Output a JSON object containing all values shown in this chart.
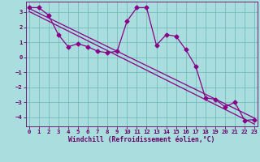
{
  "xlabel": "Windchill (Refroidissement éolien,°C)",
  "bg_color": "#aadddd",
  "line_color": "#880088",
  "grid_color": "#77bbbb",
  "axis_color": "#660066",
  "xlim": [
    -0.3,
    23.3
  ],
  "ylim": [
    -4.6,
    3.7
  ],
  "yticks": [
    -4,
    -3,
    -2,
    -1,
    0,
    1,
    2,
    3
  ],
  "xticks": [
    0,
    1,
    2,
    3,
    4,
    5,
    6,
    7,
    8,
    9,
    10,
    11,
    12,
    13,
    14,
    15,
    16,
    17,
    18,
    19,
    20,
    21,
    22,
    23
  ],
  "data_x": [
    0,
    1,
    2,
    3,
    4,
    5,
    6,
    7,
    8,
    9,
    10,
    11,
    12,
    13,
    14,
    15,
    16,
    17,
    18,
    19,
    20,
    21,
    22,
    23
  ],
  "data_y": [
    3.3,
    3.3,
    2.8,
    1.5,
    0.7,
    0.9,
    0.7,
    0.4,
    0.3,
    0.4,
    2.4,
    3.3,
    3.3,
    0.8,
    1.5,
    1.4,
    0.5,
    -0.6,
    -2.7,
    -2.8,
    -3.3,
    -3.0,
    -4.2,
    -4.15
  ],
  "trend1_x": [
    0,
    23
  ],
  "trend1_y": [
    3.25,
    -4.05
  ],
  "trend2_x": [
    0,
    23
  ],
  "trend2_y": [
    3.05,
    -4.45
  ],
  "markersize": 2.5,
  "linewidth": 0.9,
  "tick_fontsize": 5.2,
  "xlabel_fontsize": 5.8
}
